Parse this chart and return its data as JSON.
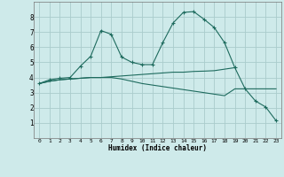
{
  "xlabel": "Humidex (Indice chaleur)",
  "bg_color": "#ceeaea",
  "grid_color": "#aacccc",
  "line_color": "#1e6b5e",
  "xlim": [
    -0.5,
    23.5
  ],
  "ylim": [
    0,
    9
  ],
  "xticks": [
    0,
    1,
    2,
    3,
    4,
    5,
    6,
    7,
    8,
    9,
    10,
    11,
    12,
    13,
    14,
    15,
    16,
    17,
    18,
    19,
    20,
    21,
    22,
    23
  ],
  "yticks": [
    1,
    2,
    3,
    4,
    5,
    6,
    7,
    8
  ],
  "series": [
    {
      "x": [
        0,
        1,
        2,
        3,
        4,
        5,
        6,
        7,
        8,
        9,
        10,
        11,
        12,
        13,
        14,
        15,
        16,
        17,
        18,
        19,
        20,
        21,
        22,
        23
      ],
      "y": [
        3.6,
        3.85,
        3.95,
        4.0,
        4.75,
        5.4,
        7.1,
        6.85,
        5.35,
        5.0,
        4.85,
        4.85,
        6.3,
        7.6,
        8.3,
        8.35,
        7.85,
        7.3,
        6.3,
        4.65,
        3.25,
        2.45,
        2.05,
        1.15
      ],
      "marker": true
    },
    {
      "x": [
        0,
        1,
        2,
        3,
        4,
        5,
        6,
        7,
        8,
        9,
        10,
        11,
        12,
        13,
        14,
        15,
        16,
        17,
        18,
        19
      ],
      "y": [
        3.6,
        3.75,
        3.85,
        3.9,
        3.95,
        4.0,
        4.0,
        4.05,
        4.1,
        4.15,
        4.2,
        4.25,
        4.3,
        4.35,
        4.35,
        4.4,
        4.42,
        4.45,
        4.55,
        4.65
      ],
      "marker": false
    },
    {
      "x": [
        0,
        1,
        2,
        3,
        4,
        5,
        6,
        7,
        8,
        9,
        10,
        11,
        12,
        13,
        14,
        15,
        16,
        17,
        18,
        19,
        20,
        21,
        22,
        23
      ],
      "y": [
        3.6,
        3.75,
        3.85,
        3.9,
        3.95,
        4.0,
        4.0,
        4.0,
        3.9,
        3.75,
        3.6,
        3.5,
        3.4,
        3.3,
        3.2,
        3.1,
        3.0,
        2.9,
        2.8,
        3.25,
        3.25,
        3.25,
        3.25,
        3.25
      ],
      "marker": false
    }
  ]
}
